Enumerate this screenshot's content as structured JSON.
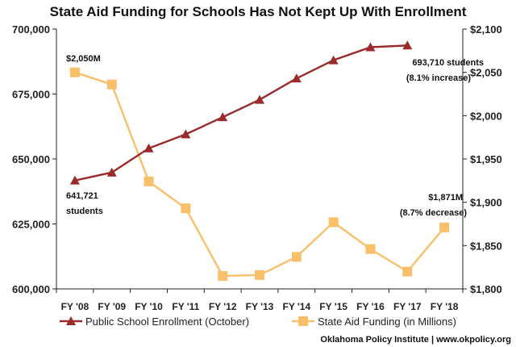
{
  "chart_data": {
    "type": "line",
    "title": "State Aid Funding for Schools Has Not Kept Up With Enrollment",
    "categories": [
      "FY '08",
      "FY '09",
      "FY '10",
      "FY '11",
      "FY '12",
      "FY '13",
      "FY '14",
      "FY '15",
      "FY '16",
      "FY '17",
      "FY '18"
    ],
    "axes": {
      "left": {
        "ylim": [
          600000,
          700000
        ],
        "ticks": [
          600000,
          625000,
          650000,
          675000,
          700000
        ],
        "tick_labels": [
          "600,000",
          "625,000",
          "650,000",
          "675,000",
          "700,000"
        ]
      },
      "right": {
        "ylim": [
          1800,
          2100
        ],
        "ticks": [
          1800,
          1850,
          1900,
          1950,
          2000,
          2050,
          2100
        ],
        "tick_labels": [
          "$1,800",
          "$1,850",
          "$1,900",
          "$1,950",
          "$2,000",
          "$2,050",
          "$2,100"
        ]
      }
    },
    "series": [
      {
        "name": "Public School Enrollment (October)",
        "axis": "left",
        "color": "#9b2a2a",
        "marker": "triangle",
        "values": [
          641721,
          644800,
          654100,
          659500,
          666100,
          672800,
          681000,
          688000,
          693000,
          693710,
          null
        ]
      },
      {
        "name": "State Aid Funding (in Millions)",
        "axis": "right",
        "color": "#f9bf6a",
        "marker": "square",
        "values": [
          2050,
          2036,
          1924,
          1893,
          1815,
          1816,
          1837,
          1877,
          1846,
          1820,
          1871
        ]
      }
    ],
    "annotations": [
      {
        "text": "$2,050M"
      },
      {
        "text": "641,721"
      },
      {
        "text": "students"
      },
      {
        "text": "693,710 students"
      },
      {
        "text": "(8.1% increase)"
      },
      {
        "text": "$1,871M"
      },
      {
        "text": "(8.7% decrease)"
      }
    ],
    "legend": "bottom",
    "grid": false
  },
  "credit": "Oklahoma Policy Institute | www.okpolicy.org"
}
